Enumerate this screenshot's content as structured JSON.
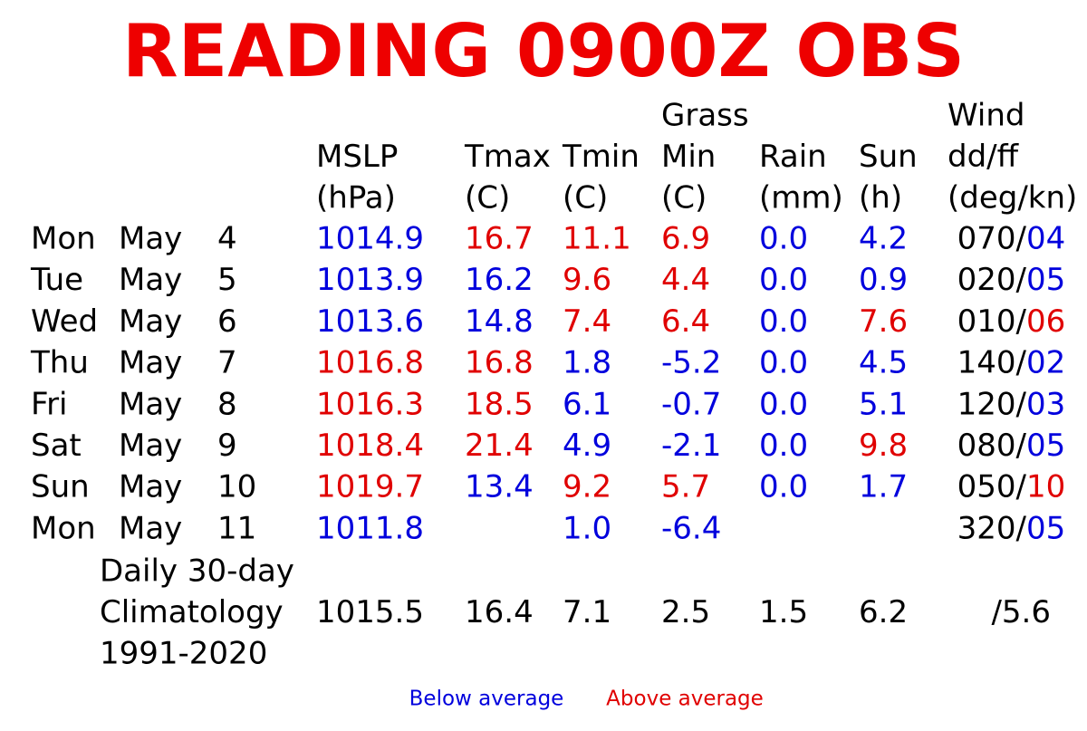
{
  "title": "READING 0900Z OBS",
  "colors": {
    "below": "#0000dd",
    "above": "#e00000"
  },
  "columns": [
    [
      "MSLP",
      "(hPa)"
    ],
    [
      "Tmax",
      "(C)"
    ],
    [
      "Tmin",
      "(C)"
    ],
    [
      "Grass",
      "Min",
      "(C)"
    ],
    [
      "Rain",
      "(mm)"
    ],
    [
      "Sun",
      "(h)"
    ],
    [
      "Wind",
      "dd/ff",
      "(deg/kn)"
    ]
  ],
  "rows": [
    {
      "day": "Mon",
      "month": "May",
      "date": "4",
      "cells": [
        "1014.9",
        "16.7",
        "11.1",
        "6.9",
        "0.0",
        "4.2"
      ],
      "wind_dir": "070/",
      "wind_speed": "04"
    },
    {
      "day": "Tue",
      "month": "May",
      "date": "5",
      "cells": [
        "1013.9",
        "16.2",
        "9.6",
        "4.4",
        "0.0",
        "0.9"
      ],
      "wind_dir": "020/",
      "wind_speed": "05"
    },
    {
      "day": "Wed",
      "month": "May",
      "date": "6",
      "cells": [
        "1013.6",
        "14.8",
        "7.4",
        "6.4",
        "0.0",
        "7.6"
      ],
      "wind_dir": "010/",
      "wind_speed": "06"
    },
    {
      "day": "Thu",
      "month": "May",
      "date": "7",
      "cells": [
        "1016.8",
        "16.8",
        "1.8",
        "-5.2",
        "0.0",
        "4.5"
      ],
      "wind_dir": "140/",
      "wind_speed": "02"
    },
    {
      "day": "Fri",
      "month": "May",
      "date": "8",
      "cells": [
        "1016.3",
        "18.5",
        "6.1",
        "-0.7",
        "0.0",
        "5.1"
      ],
      "wind_dir": "120/",
      "wind_speed": "03"
    },
    {
      "day": "Sat",
      "month": "May",
      "date": "9",
      "cells": [
        "1018.4",
        "21.4",
        "4.9",
        "-2.1",
        "0.0",
        "9.8"
      ],
      "wind_dir": "080/",
      "wind_speed": "05"
    },
    {
      "day": "Sun",
      "month": "May",
      "date": "10",
      "cells": [
        "1019.7",
        "13.4",
        "9.2",
        "5.7",
        "0.0",
        "1.7"
      ],
      "wind_dir": "050/",
      "wind_speed": "10"
    },
    {
      "day": "Mon",
      "month": "May",
      "date": "11",
      "cells": [
        "1011.8",
        null,
        "1.0",
        "-6.4",
        null,
        null
      ],
      "wind_dir": "320/",
      "wind_speed": "05"
    }
  ],
  "climatology": {
    "label": [
      "Daily 30-day",
      "Climatology",
      "1991-2020"
    ],
    "cells": [
      "1015.5",
      "16.4",
      "7.1",
      "2.5",
      "1.5",
      "6.2"
    ],
    "wind": "/5.6"
  },
  "legend": {
    "below": "Below average",
    "above": "Above average"
  }
}
